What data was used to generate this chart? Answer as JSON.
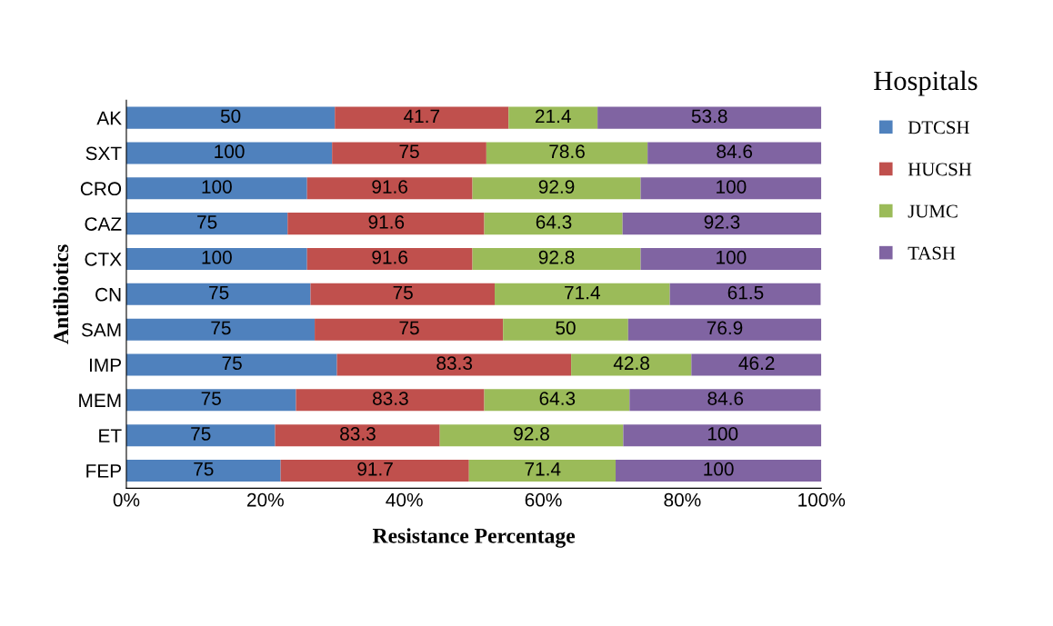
{
  "chart_data": {
    "type": "bar",
    "orientation": "horizontal",
    "stacked": true,
    "xlabel": "Resistance Percentage",
    "ylabel": "Antibiotics",
    "legend_title": "Hospitals",
    "legend": "right",
    "categories": [
      "AK",
      "SXT",
      "CRO",
      "CAZ",
      "CTX",
      "CN",
      "SAM",
      "IMP",
      "MEM",
      "ET",
      "FEP"
    ],
    "xlim": [
      0,
      100
    ],
    "xticks": [
      {
        "value": 0,
        "label": "0%"
      },
      {
        "value": 20,
        "label": "20%"
      },
      {
        "value": 40,
        "label": "40%"
      },
      {
        "value": 60,
        "label": "60%"
      },
      {
        "value": 80,
        "label": "80%"
      },
      {
        "value": 100,
        "label": "100%"
      }
    ],
    "series": [
      {
        "name": "DTCSH",
        "color": "#4f81bd",
        "values": [
          30.0,
          29.6,
          26.0,
          23.2,
          26.0,
          26.5,
          27.1,
          30.3,
          24.4,
          21.4,
          22.2
        ]
      },
      {
        "name": "HUCSH",
        "color": "#c0504d",
        "values": [
          25.0,
          22.2,
          23.8,
          28.3,
          23.8,
          26.5,
          27.1,
          33.7,
          27.1,
          23.7,
          27.1
        ]
      },
      {
        "name": "JUMC",
        "color": "#9bbb59",
        "values": [
          12.8,
          23.2,
          24.2,
          19.9,
          24.2,
          25.2,
          18.0,
          17.3,
          20.9,
          26.4,
          21.1
        ]
      },
      {
        "name": "TASH",
        "color": "#8064a2",
        "values": [
          32.2,
          25.0,
          26.0,
          28.6,
          26.0,
          21.7,
          27.8,
          18.7,
          27.5,
          28.5,
          29.6
        ]
      }
    ],
    "annotations": [
      {
        "text": "50",
        "x": 15.0,
        "y": "AK"
      },
      {
        "text": "41.7",
        "x": 42.5,
        "y": "AK"
      },
      {
        "text": "21.4",
        "x": 61.4,
        "y": "AK"
      },
      {
        "text": "53.8",
        "x": 83.9,
        "y": "AK"
      },
      {
        "text": "100",
        "x": 14.8,
        "y": "SXT"
      },
      {
        "text": "75",
        "x": 40.7,
        "y": "SXT"
      },
      {
        "text": "78.6",
        "x": 63.4,
        "y": "SXT"
      },
      {
        "text": "84.6",
        "x": 87.5,
        "y": "SXT"
      },
      {
        "text": "100",
        "x": 13.0,
        "y": "CRO"
      },
      {
        "text": "91.6",
        "x": 37.9,
        "y": "CRO"
      },
      {
        "text": "92.9",
        "x": 61.9,
        "y": "CRO"
      },
      {
        "text": "100",
        "x": 87.0,
        "y": "CRO"
      },
      {
        "text": "75",
        "x": 11.6,
        "y": "CAZ"
      },
      {
        "text": "91.6",
        "x": 37.4,
        "y": "CAZ"
      },
      {
        "text": "64.3",
        "x": 61.5,
        "y": "CAZ"
      },
      {
        "text": "92.3",
        "x": 85.7,
        "y": "CAZ"
      },
      {
        "text": "100",
        "x": 13.0,
        "y": "CTX"
      },
      {
        "text": "91.6",
        "x": 37.9,
        "y": "CTX"
      },
      {
        "text": "92.8",
        "x": 61.9,
        "y": "CTX"
      },
      {
        "text": "100",
        "x": 87.0,
        "y": "CTX"
      },
      {
        "text": "75",
        "x": 13.3,
        "y": "CN"
      },
      {
        "text": "75",
        "x": 39.8,
        "y": "CN"
      },
      {
        "text": "71.4",
        "x": 65.6,
        "y": "CN"
      },
      {
        "text": "61.5",
        "x": 89.1,
        "y": "CN"
      },
      {
        "text": "75",
        "x": 13.6,
        "y": "SAM"
      },
      {
        "text": "75",
        "x": 40.7,
        "y": "SAM"
      },
      {
        "text": "50",
        "x": 63.2,
        "y": "SAM"
      },
      {
        "text": "76.9",
        "x": 86.1,
        "y": "SAM"
      },
      {
        "text": "75",
        "x": 15.2,
        "y": "IMP"
      },
      {
        "text": "83.3",
        "x": 47.2,
        "y": "IMP"
      },
      {
        "text": "42.8",
        "x": 72.7,
        "y": "IMP"
      },
      {
        "text": "46.2",
        "x": 90.7,
        "y": "IMP"
      },
      {
        "text": "75",
        "x": 12.2,
        "y": "MEM"
      },
      {
        "text": "83.3",
        "x": 38.0,
        "y": "MEM"
      },
      {
        "text": "64.3",
        "x": 62.0,
        "y": "MEM"
      },
      {
        "text": "84.6",
        "x": 86.2,
        "y": "MEM"
      },
      {
        "text": "75",
        "x": 10.7,
        "y": "ET"
      },
      {
        "text": "83.3",
        "x": 33.3,
        "y": "ET"
      },
      {
        "text": "92.8",
        "x": 58.3,
        "y": "ET"
      },
      {
        "text": "100",
        "x": 85.8,
        "y": "ET"
      },
      {
        "text": "75",
        "x": 11.1,
        "y": "FEP"
      },
      {
        "text": "91.7",
        "x": 35.8,
        "y": "FEP"
      },
      {
        "text": "71.4",
        "x": 59.9,
        "y": "FEP"
      },
      {
        "text": "100",
        "x": 85.2,
        "y": "FEP"
      }
    ]
  }
}
